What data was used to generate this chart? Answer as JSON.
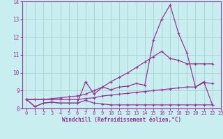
{
  "xlabel": "Windchill (Refroidissement éolien,°C)",
  "background_color": "#c8eef0",
  "grid_color": "#a0cccc",
  "line_color": "#993399",
  "xlim": [
    -0.5,
    23
  ],
  "ylim": [
    8.0,
    14.0
  ],
  "yticks": [
    8,
    9,
    10,
    11,
    12,
    13,
    14
  ],
  "xticks": [
    0,
    1,
    2,
    3,
    4,
    5,
    6,
    7,
    8,
    9,
    10,
    11,
    12,
    13,
    14,
    15,
    16,
    17,
    18,
    19,
    20,
    21,
    22,
    23
  ],
  "series1": [
    8.5,
    8.1,
    8.3,
    8.35,
    8.3,
    8.3,
    8.3,
    9.5,
    8.8,
    9.2,
    9.05,
    9.2,
    9.25,
    9.4,
    9.3,
    11.8,
    13.0,
    13.8,
    12.2,
    11.1,
    9.2,
    9.5,
    8.2
  ],
  "series2": [
    8.5,
    8.1,
    8.3,
    8.35,
    8.3,
    8.3,
    8.3,
    8.45,
    8.3,
    8.25,
    8.2,
    8.2,
    8.2,
    8.2,
    8.2,
    8.2,
    8.2,
    8.2,
    8.2,
    8.2,
    8.2,
    8.2,
    8.2
  ],
  "series3": [
    8.5,
    8.5,
    8.5,
    8.55,
    8.6,
    8.65,
    8.7,
    8.8,
    9.0,
    9.2,
    9.5,
    9.75,
    10.0,
    10.3,
    10.6,
    10.9,
    11.2,
    10.8,
    10.7,
    10.5,
    10.5,
    10.5,
    10.5
  ],
  "series4": [
    8.5,
    8.5,
    8.5,
    8.5,
    8.5,
    8.5,
    8.5,
    8.55,
    8.6,
    8.7,
    8.75,
    8.8,
    8.85,
    8.9,
    8.95,
    9.0,
    9.05,
    9.1,
    9.15,
    9.2,
    9.2,
    9.45,
    9.4
  ]
}
